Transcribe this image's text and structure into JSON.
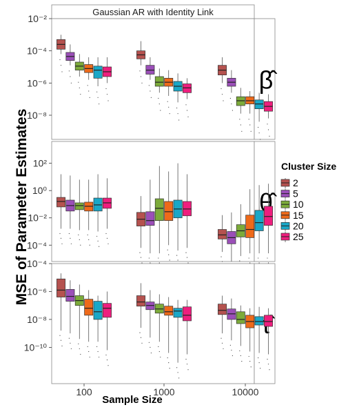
{
  "chart_data": {
    "type": "box",
    "title": "Gaussian AR with Identity Link",
    "xlabel": "Sample Size",
    "ylabel": "MSE of Parameter Estimates",
    "categories": [
      "100",
      "1000",
      "10000"
    ],
    "y_scale": "log10",
    "legend": {
      "title": "Cluster Size",
      "position": "right",
      "entries": [
        {
          "label": "2",
          "color": "#b5524f"
        },
        {
          "label": "5",
          "color": "#9b4fb8"
        },
        {
          "label": "10",
          "color": "#7cab3a"
        },
        {
          "label": "15",
          "color": "#ee6a1a"
        },
        {
          "label": "20",
          "color": "#1aa7c7"
        },
        {
          "label": "25",
          "color": "#ee1e7e"
        }
      ]
    },
    "facets": [
      {
        "strip_label": "β̂",
        "ylim_log10": [
          -9.5,
          -2
        ],
        "tick_labels": [
          "10⁻²",
          "10⁻⁴",
          "10⁻⁶",
          "10⁻⁸"
        ],
        "tick_exponents": [
          -2,
          -4,
          -6,
          -8
        ],
        "series": [
          {
            "name": "2",
            "boxes": [
              [
                -4.2,
                -3.9,
                -3.6,
                -3.3,
                -3.0
              ],
              [
                -4.9,
                -4.5,
                -4.25,
                -4.0,
                -3.4
              ],
              [
                -6.0,
                -5.5,
                -5.2,
                -4.9,
                -4.4
              ]
            ]
          },
          {
            "name": "5",
            "boxes": [
              [
                -4.9,
                -4.6,
                -4.35,
                -4.1,
                -3.6
              ],
              [
                -5.8,
                -5.45,
                -5.2,
                -4.9,
                -4.4
              ],
              [
                -6.6,
                -6.2,
                -5.95,
                -5.7,
                -5.2
              ]
            ]
          },
          {
            "name": "10",
            "boxes": [
              [
                -5.6,
                -5.2,
                -4.95,
                -4.7,
                -4.2
              ],
              [
                -6.6,
                -6.2,
                -5.95,
                -5.6,
                -5.1
              ],
              [
                -7.9,
                -7.4,
                -7.1,
                -6.85,
                -6.3
              ]
            ]
          },
          {
            "name": "15",
            "boxes": [
              [
                -5.8,
                -5.35,
                -5.1,
                -4.85,
                -4.4
              ],
              [
                -6.8,
                -6.2,
                -5.95,
                -5.7,
                -5.2
              ],
              [
                -7.9,
                -7.3,
                -7.1,
                -6.85,
                -6.5
              ]
            ]
          },
          {
            "name": "20",
            "boxes": [
              [
                -6.2,
                -5.7,
                -5.2,
                -4.95,
                -4.4
              ],
              [
                -7.2,
                -6.5,
                -6.2,
                -5.9,
                -5.4
              ],
              [
                -8.4,
                -7.6,
                -7.3,
                -7.05,
                -6.6
              ]
            ]
          },
          {
            "name": "25",
            "boxes": [
              [
                -6.0,
                -5.6,
                -5.3,
                -5.0,
                -4.4
              ],
              [
                -7.0,
                -6.6,
                -6.3,
                -6.05,
                -5.7
              ],
              [
                -8.2,
                -7.75,
                -7.45,
                -7.15,
                -6.7
              ]
            ]
          }
        ]
      },
      {
        "strip_label": "θ̂",
        "ylim_log10": [
          -5.2,
          3.6
        ],
        "tick_labels": [
          "10²",
          "10⁰",
          "10⁻²",
          "10⁻⁴"
        ],
        "tick_exponents": [
          2,
          0,
          -2,
          -4
        ],
        "series": [
          {
            "name": "2",
            "boxes": [
              [
                -2.8,
                -1.2,
                -0.8,
                -0.5,
                1.2
              ],
              [
                -4.2,
                -2.6,
                -2.1,
                -1.6,
                -0.4
              ],
              [
                -4.5,
                -3.55,
                -3.25,
                -2.85,
                -1.8
              ]
            ]
          },
          {
            "name": "5",
            "boxes": [
              [
                -2.8,
                -1.5,
                -1.1,
                -0.7,
                1.1
              ],
              [
                -4.6,
                -2.55,
                -2.2,
                -1.55,
                0.8
              ],
              [
                -5.2,
                -3.9,
                -3.45,
                -3.0,
                -1.6
              ]
            ]
          },
          {
            "name": "10",
            "boxes": [
              [
                -2.9,
                -1.4,
                -1.1,
                -0.9,
                0.8
              ],
              [
                -4.6,
                -2.2,
                -1.3,
                -0.6,
                1.8
              ],
              [
                -4.8,
                -3.4,
                -2.95,
                -2.5,
                -1.0
              ]
            ]
          },
          {
            "name": "15",
            "boxes": [
              [
                -2.9,
                -1.5,
                -1.15,
                -0.85,
                0.8
              ],
              [
                -4.0,
                -2.2,
                -1.55,
                -0.8,
                1.4
              ],
              [
                -4.6,
                -3.45,
                -2.85,
                -1.8,
                0.1
              ]
            ]
          },
          {
            "name": "20",
            "boxes": [
              [
                -3.0,
                -1.5,
                -1.05,
                -0.55,
                1.2
              ],
              [
                -4.4,
                -2.0,
                -1.35,
                -0.7,
                2.0
              ],
              [
                -4.6,
                -2.95,
                -2.35,
                -1.45,
                0.4
              ]
            ]
          },
          {
            "name": "25",
            "boxes": [
              [
                -2.8,
                -1.3,
                -0.9,
                -0.55,
                0.9
              ],
              [
                -4.2,
                -1.85,
                -1.35,
                -0.8,
                1.2
              ],
              [
                -4.6,
                -2.55,
                -1.9,
                -1.15,
                0.5
              ]
            ]
          }
        ]
      },
      {
        "strip_label": "τ̂",
        "ylim_log10": [
          -12.6,
          -4
        ],
        "tick_labels": [
          "10⁻⁴",
          "10⁻⁶",
          "10⁻⁸",
          "10⁻¹⁰"
        ],
        "tick_exponents": [
          -4,
          -6,
          -8,
          -10
        ],
        "series": [
          {
            "name": "2",
            "boxes": [
              [
                -8.8,
                -6.4,
                -5.9,
                -5.1,
                -4.7
              ],
              [
                -8.6,
                -7.05,
                -6.75,
                -6.3,
                -5.4
              ],
              [
                -9.0,
                -7.65,
                -7.35,
                -6.9,
                -6.3
              ]
            ]
          },
          {
            "name": "5",
            "boxes": [
              [
                -9.0,
                -6.7,
                -6.35,
                -5.85,
                -5.2
              ],
              [
                -9.3,
                -7.3,
                -7.0,
                -6.75,
                -5.9
              ],
              [
                -9.5,
                -8.0,
                -7.6,
                -7.25,
                -6.5
              ]
            ]
          },
          {
            "name": "10",
            "boxes": [
              [
                -9.4,
                -7.0,
                -6.65,
                -6.3,
                -5.5
              ],
              [
                -9.6,
                -7.55,
                -7.25,
                -6.9,
                -6.2
              ],
              [
                -9.9,
                -8.3,
                -8.0,
                -7.45,
                -7.0
              ]
            ]
          },
          {
            "name": "15",
            "boxes": [
              [
                -9.6,
                -7.7,
                -7.2,
                -6.55,
                -5.9
              ],
              [
                -10.4,
                -7.7,
                -7.45,
                -7.05,
                -6.4
              ],
              [
                -10.3,
                -8.6,
                -8.15,
                -7.7,
                -7.2
              ]
            ]
          },
          {
            "name": "20",
            "boxes": [
              [
                -9.6,
                -8.0,
                -7.45,
                -6.7,
                -6.3
              ],
              [
                -11.1,
                -7.85,
                -7.4,
                -7.2,
                -6.6
              ],
              [
                -10.4,
                -8.4,
                -8.15,
                -7.8,
                -7.1
              ]
            ]
          },
          {
            "name": "25",
            "boxes": [
              [
                -10.2,
                -7.85,
                -7.2,
                -6.85,
                -6.0
              ],
              [
                -10.5,
                -8.1,
                -7.7,
                -7.1,
                -6.6
              ],
              [
                -10.5,
                -8.5,
                -8.15,
                -7.7,
                -7.2
              ]
            ]
          }
        ]
      }
    ]
  }
}
